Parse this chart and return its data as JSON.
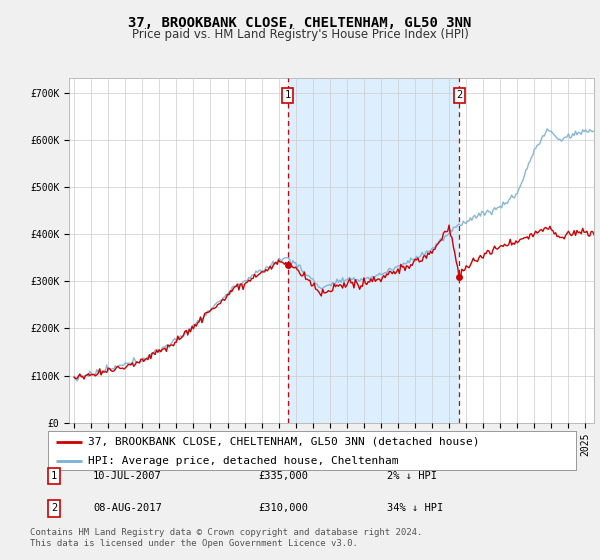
{
  "title": "37, BROOKBANK CLOSE, CHELTENHAM, GL50 3NN",
  "subtitle": "Price paid vs. HM Land Registry's House Price Index (HPI)",
  "ylabel_ticks": [
    "£0",
    "£100K",
    "£200K",
    "£300K",
    "£400K",
    "£500K",
    "£600K",
    "£700K"
  ],
  "ytick_values": [
    0,
    100000,
    200000,
    300000,
    400000,
    500000,
    600000,
    700000
  ],
  "ylim": [
    0,
    730000
  ],
  "xlim_start": 1994.7,
  "xlim_end": 2025.5,
  "sale1_x": 2007.53,
  "sale1_y": 335000,
  "sale2_x": 2017.6,
  "sale2_y": 310000,
  "legend_line1": "37, BROOKBANK CLOSE, CHELTENHAM, GL50 3NN (detached house)",
  "legend_line2": "HPI: Average price, detached house, Cheltenham",
  "row1_label": "1",
  "row1_date": "10-JUL-2007",
  "row1_price": "£335,000",
  "row1_hpi": "2% ↓ HPI",
  "row2_label": "2",
  "row2_date": "08-AUG-2017",
  "row2_price": "£310,000",
  "row2_hpi": "34% ↓ HPI",
  "footer": "Contains HM Land Registry data © Crown copyright and database right 2024.\nThis data is licensed under the Open Government Licence v3.0.",
  "bg_color": "#f0f0f0",
  "plot_bg_color": "#ffffff",
  "shade_color": "#ddeeff",
  "hpi_color": "#7bafd4",
  "price_color": "#cc0000",
  "grid_color": "#cccccc",
  "vline_color": "#cc0000",
  "title_fontsize": 10,
  "subtitle_fontsize": 8.5,
  "tick_fontsize": 7,
  "legend_fontsize": 8,
  "footer_fontsize": 6.5
}
